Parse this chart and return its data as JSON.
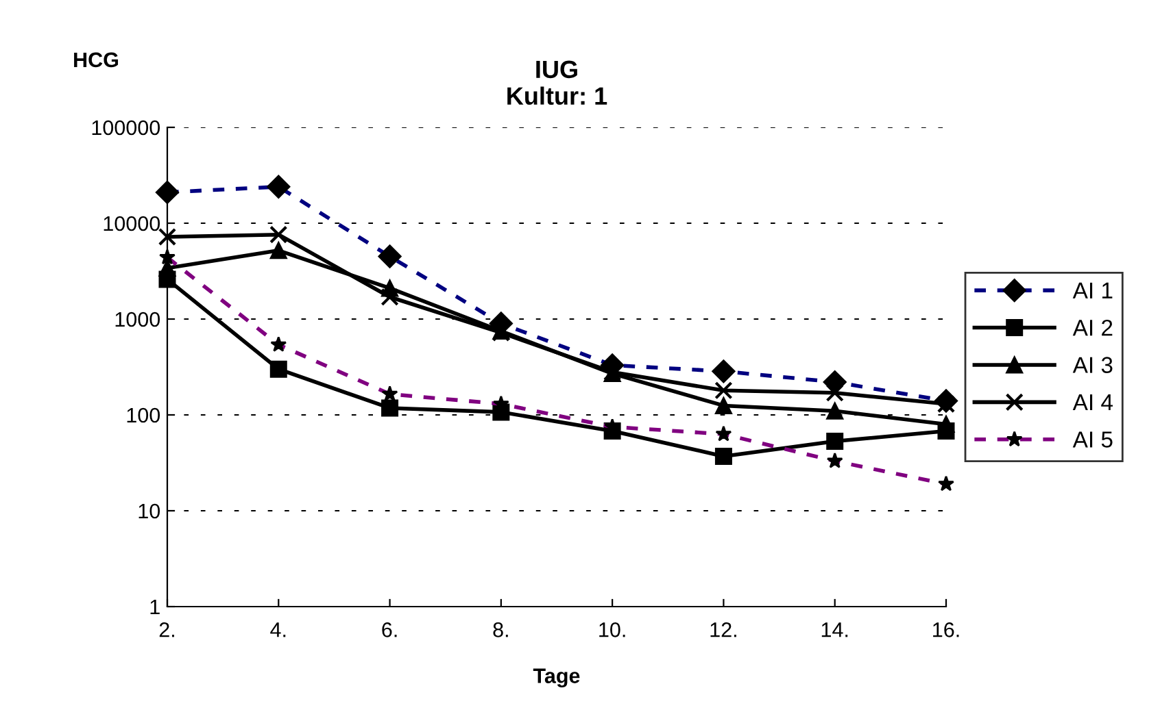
{
  "chart_data": {
    "type": "line",
    "title": "IUG\nKultur: 1",
    "xlabel": "Tage",
    "ylabel": "HCG",
    "categories": [
      "2.",
      "4.",
      "6.",
      "8.",
      "10.",
      "12.",
      "14.",
      "16."
    ],
    "series": [
      {
        "name": "AI 1",
        "color": "#000080",
        "line_style": "dashed",
        "marker": "diamond",
        "values": [
          21000,
          24000,
          4500,
          900,
          330,
          285,
          220,
          140
        ]
      },
      {
        "name": "AI 2",
        "color": "#000000",
        "line_style": "solid",
        "marker": "square",
        "values": [
          2600,
          300,
          118,
          107,
          68,
          37,
          53,
          68
        ]
      },
      {
        "name": "AI 3",
        "color": "#000000",
        "line_style": "solid",
        "marker": "triangle",
        "values": [
          3400,
          5200,
          2100,
          750,
          270,
          125,
          110,
          80
        ]
      },
      {
        "name": "AI 4",
        "color": "#000000",
        "line_style": "solid",
        "marker": "cross",
        "values": [
          7200,
          7600,
          1700,
          720,
          280,
          180,
          170,
          130
        ]
      },
      {
        "name": "AI 5",
        "color": "#800080",
        "line_style": "dashed",
        "marker": "star",
        "values": [
          4400,
          540,
          165,
          130,
          75,
          63,
          33,
          19
        ]
      }
    ],
    "log": "y",
    "ylim": [
      1,
      100000
    ],
    "yticks": [
      1,
      10,
      100,
      1000,
      10000,
      100000
    ],
    "grid": "y",
    "legend": "right"
  }
}
